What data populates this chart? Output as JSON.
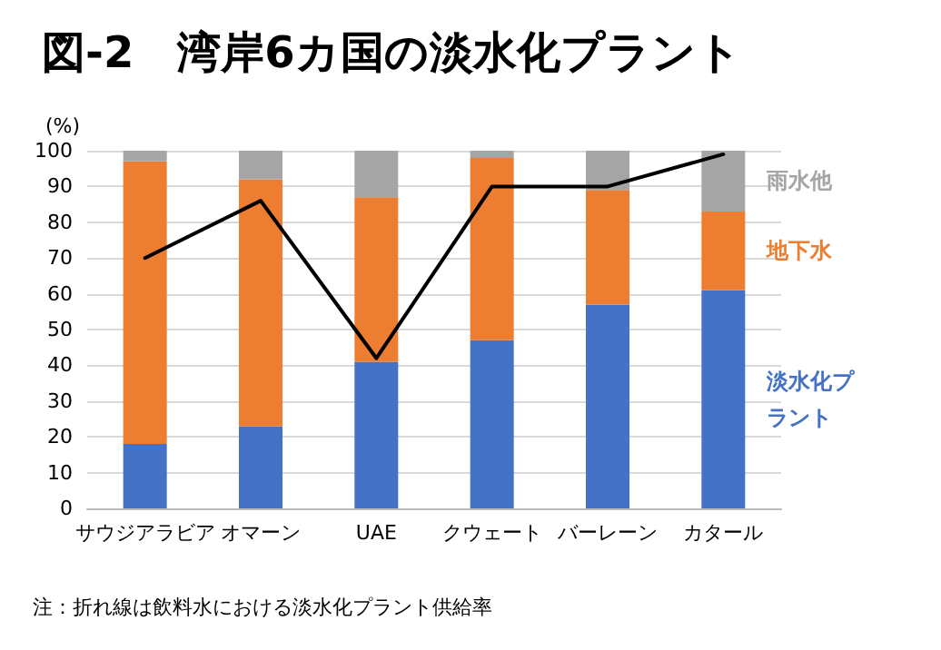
{
  "chart_data": {
    "type": "bar",
    "title": "図-2　湾岸6カ国の淡水化プラント",
    "ylabel": "(%)",
    "categories": [
      "サウジアラビア",
      "オマーン",
      "UAE",
      "クウェート",
      "バーレーン",
      "カタール"
    ],
    "stacked": true,
    "series": [
      {
        "name": "淡水化プラント",
        "color": "#4472c4",
        "values": [
          18,
          23,
          41,
          47,
          57,
          61
        ]
      },
      {
        "name": "地下水",
        "color": "#ed7d31",
        "values": [
          79,
          69,
          46,
          51,
          32,
          22
        ]
      },
      {
        "name": "雨水他",
        "color": "#a5a5a5",
        "values": [
          3,
          8,
          13,
          2,
          11,
          17
        ]
      },
      {
        "type": "line",
        "color": "#000000",
        "values": [
          70,
          86,
          42,
          90,
          90,
          99
        ]
      }
    ],
    "ylim": [
      0,
      100
    ],
    "yticks": [
      0,
      10,
      20,
      30,
      40,
      50,
      60,
      70,
      80,
      90,
      100
    ],
    "grid": "y",
    "legend": false,
    "marker": "none",
    "line_style": "solid",
    "annotations": [
      "注：折れ線は飲料水における淡水化プラント供給率"
    ]
  }
}
